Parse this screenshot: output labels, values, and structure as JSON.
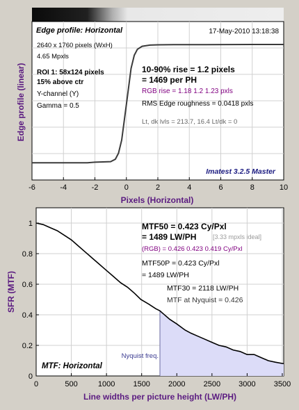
{
  "chart_data": [
    {
      "type": "line",
      "title": "Edge profile: Horizontal",
      "timestamp": "17-May-2010 13:18:38",
      "xlabel": "Pixels (Horizontal)",
      "ylabel": "Edge profile (linear)",
      "xlim": [
        -6,
        10
      ],
      "xticks": [
        -6,
        -4,
        -2,
        0,
        2,
        4,
        6,
        8,
        10
      ],
      "grid": true,
      "info_lines": [
        "2640 x 1760 pixels (WxH)",
        "4.65 Mpxls"
      ],
      "roi_lines": [
        "ROI 1:  58x124 pixels",
        "15% above ctr"
      ],
      "channel_lines": [
        "Y-channel  (Y)",
        "Gamma = 0.5"
      ],
      "rise_lines": [
        "10-90% rise = 1.2 pixels",
        "= 1469 per PH"
      ],
      "rgb_rise": "RGB rise = 1.18  1.2  1.23 pxls",
      "roughness": "RMS Edge roughness = 0.0418 pxls",
      "levels": "Lt, dk lvls = 213.7, 16.4   Lt/dk = 0",
      "footer": "Imatest 3.2.5 Master",
      "series": [
        {
          "x": [
            -6,
            -2.5,
            -2,
            -1,
            -0.7,
            -0.5,
            -0.3,
            0,
            0.3,
            0.5,
            0.7,
            1,
            1.5,
            2,
            3,
            5,
            8,
            10
          ],
          "y": [
            0.01,
            0.01,
            0.015,
            0.02,
            0.04,
            0.09,
            0.2,
            0.5,
            0.8,
            0.91,
            0.96,
            0.985,
            0.995,
            0.997,
            0.998,
            0.999,
            1.0,
            1.0
          ]
        }
      ]
    },
    {
      "type": "line",
      "title": "MTF: Horizontal",
      "xlabel": "Line widths per picture height (LW/PH)",
      "ylabel": "SFR (MTF)",
      "xlim": [
        0,
        3520
      ],
      "ylim": [
        0,
        1.1
      ],
      "xticks": [
        0,
        500,
        1000,
        1500,
        2000,
        2500,
        3000,
        3500
      ],
      "yticks": [
        0,
        0.2,
        0.4,
        0.6,
        0.8,
        1
      ],
      "grid": true,
      "mtf50_lines": [
        "MTF50 = 0.423 Cy/Pxl",
        "= 1489 LW/PH"
      ],
      "ideal_note": "[3.33 mpxls ideal]",
      "rgb_mtf50": "(RGB) = 0.426  0.423  0.419 Cy/Pxl",
      "mtf50p_lines": [
        "MTF50P = 0.423 Cy/Pxl",
        "= 1489 LW/PH"
      ],
      "mtf30_line": "MTF30 = 2118 LW/PH",
      "nyquist_mtf": "MTF at Nyquist = 0.426",
      "nyquist_label": "Nyquist freq.",
      "nyquist_x": 1760,
      "series": [
        {
          "x": [
            0,
            100,
            200,
            300,
            400,
            500,
            600,
            700,
            800,
            900,
            1000,
            1100,
            1200,
            1300,
            1400,
            1489,
            1600,
            1700,
            1760,
            1800,
            1900,
            2000,
            2118,
            2200,
            2300,
            2400,
            2500,
            2600,
            2700,
            2800,
            2900,
            3000,
            3100,
            3200,
            3300,
            3400,
            3520
          ],
          "y": [
            1.0,
            0.99,
            0.97,
            0.95,
            0.92,
            0.89,
            0.85,
            0.81,
            0.77,
            0.73,
            0.69,
            0.65,
            0.61,
            0.58,
            0.54,
            0.5,
            0.47,
            0.44,
            0.426,
            0.41,
            0.37,
            0.34,
            0.3,
            0.28,
            0.26,
            0.24,
            0.22,
            0.2,
            0.19,
            0.17,
            0.16,
            0.14,
            0.14,
            0.12,
            0.1,
            0.09,
            0.08
          ]
        }
      ]
    }
  ]
}
